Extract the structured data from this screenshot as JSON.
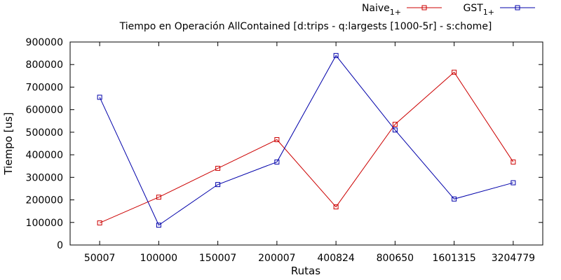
{
  "chart_data": {
    "type": "line",
    "title": "Tiempo en Operación AllContained [d:trips - q:largests [1000-5r] - s:chome]",
    "xlabel": "Rutas",
    "ylabel": "Tiempo [us]",
    "categories": [
      "50007",
      "100000",
      "150007",
      "200007",
      "400824",
      "800650",
      "1601315",
      "3204779"
    ],
    "ylim": [
      0,
      900000
    ],
    "yticks": [
      0,
      100000,
      200000,
      300000,
      400000,
      500000,
      600000,
      700000,
      800000,
      900000
    ],
    "grid": false,
    "legend_position": "top-right",
    "series": [
      {
        "name": "Naive",
        "subscript": "1+",
        "color": "#cc0000",
        "marker": "square",
        "values": [
          98000,
          212000,
          340000,
          467000,
          169000,
          535000,
          766000,
          368000
        ]
      },
      {
        "name": "GST",
        "subscript": "1+",
        "color": "#0000aa",
        "marker": "square",
        "values": [
          655000,
          88000,
          268000,
          368000,
          840000,
          510000,
          204000,
          276000
        ]
      }
    ]
  }
}
